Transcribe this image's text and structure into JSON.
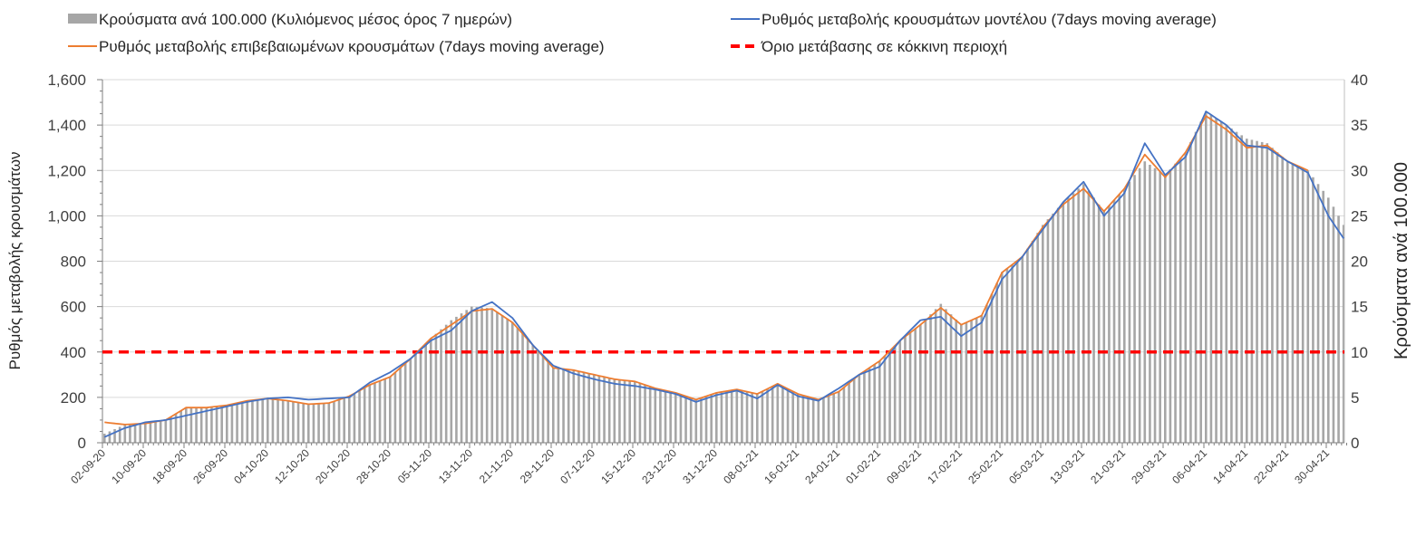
{
  "chart_data": {
    "type": "bar+line",
    "title": "",
    "legend": {
      "placement": "top",
      "entries": [
        "Κρούσματα ανά 100.000 (Κυλιόμενος μέσος όρος 7 ημερών)",
        "Ρυθμός μεταβολής κρουσμάτων μοντέλου (7days moving average)",
        "Ρυθμός μεταβολής επιβεβαιωμένων κρουσμάτων (7days moving average)",
        "Όριο μετάβασης σε κόκκινη περιοχή"
      ]
    },
    "ylabel": "Ρυθμός μεταβολής κρουσμάτων",
    "y2label": "Κρούσματα ανά 100.000",
    "ylim": [
      0,
      1600
    ],
    "y2lim": [
      0,
      40
    ],
    "yticks": [
      "0",
      "200",
      "400",
      "600",
      "800",
      "1,000",
      "1,200",
      "1,400",
      "1,600"
    ],
    "y2ticks": [
      "0",
      "5",
      "10",
      "15",
      "20",
      "25",
      "30",
      "35",
      "40"
    ],
    "xticks": [
      "02-09-20",
      "10-09-20",
      "18-09-20",
      "26-09-20",
      "04-10-20",
      "12-10-20",
      "20-10-20",
      "28-10-20",
      "05-11-20",
      "13-11-20",
      "21-11-20",
      "29-11-20",
      "07-12-20",
      "15-12-20",
      "23-12-20",
      "31-12-20",
      "08-01-21",
      "16-01-21",
      "24-01-21",
      "01-02-21",
      "09-02-21",
      "17-02-21",
      "25-02-21",
      "05-03-21",
      "13-03-21",
      "21-03-21",
      "29-03-21",
      "06-04-21",
      "14-04-21",
      "22-04-21",
      "30-04-21"
    ],
    "xtick_step_days": 8,
    "total_days": 244,
    "grid": true,
    "sample_day_index": [
      0,
      4,
      8,
      12,
      16,
      20,
      24,
      28,
      32,
      36,
      40,
      44,
      48,
      52,
      56,
      60,
      64,
      68,
      72,
      76,
      80,
      84,
      88,
      92,
      96,
      100,
      104,
      108,
      112,
      116,
      120,
      124,
      128,
      132,
      136,
      140,
      144,
      148,
      152,
      156,
      160,
      164,
      168,
      172,
      176,
      180,
      184,
      188,
      192,
      196,
      200,
      204,
      208,
      212,
      216,
      220,
      224,
      228,
      232,
      236,
      240,
      243
    ],
    "series": [
      {
        "name": "Κρούσματα ανά 100.000 (Κυλιόμενος μέσος όρος 7 ημερών)",
        "type": "bar",
        "axis": "right",
        "color": "#a6a6a6",
        "values": [
          1,
          2,
          2.2,
          2.5,
          3.9,
          3.9,
          4.1,
          4.6,
          4.9,
          4.6,
          4.3,
          4.4,
          5.1,
          6.4,
          7.3,
          9.3,
          11.5,
          13.5,
          15,
          14.8,
          13.3,
          10.8,
          8.3,
          8,
          7.5,
          7,
          6.8,
          6,
          5.5,
          4.8,
          5.5,
          5.9,
          5.4,
          6.5,
          5.4,
          4.8,
          5.6,
          7.5,
          9,
          11.3,
          13,
          15.3,
          13,
          14,
          18.8,
          20.5,
          24,
          26.5,
          28.5,
          25.5,
          28,
          31,
          29.5,
          32,
          36.5,
          35,
          33.5,
          33,
          31,
          30,
          27,
          24
        ]
      },
      {
        "name": "Ρυθμός μεταβολής κρουσμάτων μοντέλου (7days moving average)",
        "type": "line",
        "axis": "left",
        "color": "#4472c4",
        "values": [
          25,
          65,
          90,
          100,
          120,
          140,
          160,
          180,
          195,
          200,
          190,
          195,
          200,
          265,
          310,
          370,
          450,
          495,
          580,
          620,
          550,
          430,
          340,
          305,
          280,
          260,
          250,
          235,
          215,
          180,
          210,
          230,
          195,
          255,
          205,
          185,
          240,
          300,
          335,
          450,
          540,
          555,
          470,
          530,
          720,
          820,
          940,
          1060,
          1150,
          1000,
          1100,
          1320,
          1180,
          1260,
          1460,
          1400,
          1310,
          1300,
          1240,
          1190,
          1000,
          900
        ]
      },
      {
        "name": "Ρυθμός μεταβολής επιβεβαιωμένων κρουσμάτων (7days moving average)",
        "type": "line",
        "axis": "left",
        "color": "#ed7d31",
        "values": [
          90,
          80,
          85,
          100,
          155,
          155,
          165,
          185,
          195,
          185,
          170,
          175,
          205,
          255,
          290,
          370,
          460,
          520,
          580,
          590,
          530,
          430,
          330,
          320,
          300,
          280,
          270,
          240,
          220,
          190,
          220,
          235,
          215,
          260,
          215,
          190,
          225,
          300,
          360,
          450,
          520,
          595,
          520,
          560,
          750,
          820,
          950,
          1050,
          1120,
          1020,
          1120,
          1270,
          1170,
          1280,
          1440,
          1380,
          1300,
          1310,
          1240,
          1200,
          null,
          null
        ]
      },
      {
        "name": "Όριο μετάβασης σε κόκκινη περιοχή",
        "type": "hline",
        "axis": "left",
        "color": "#ff0000",
        "value": 400
      }
    ]
  }
}
